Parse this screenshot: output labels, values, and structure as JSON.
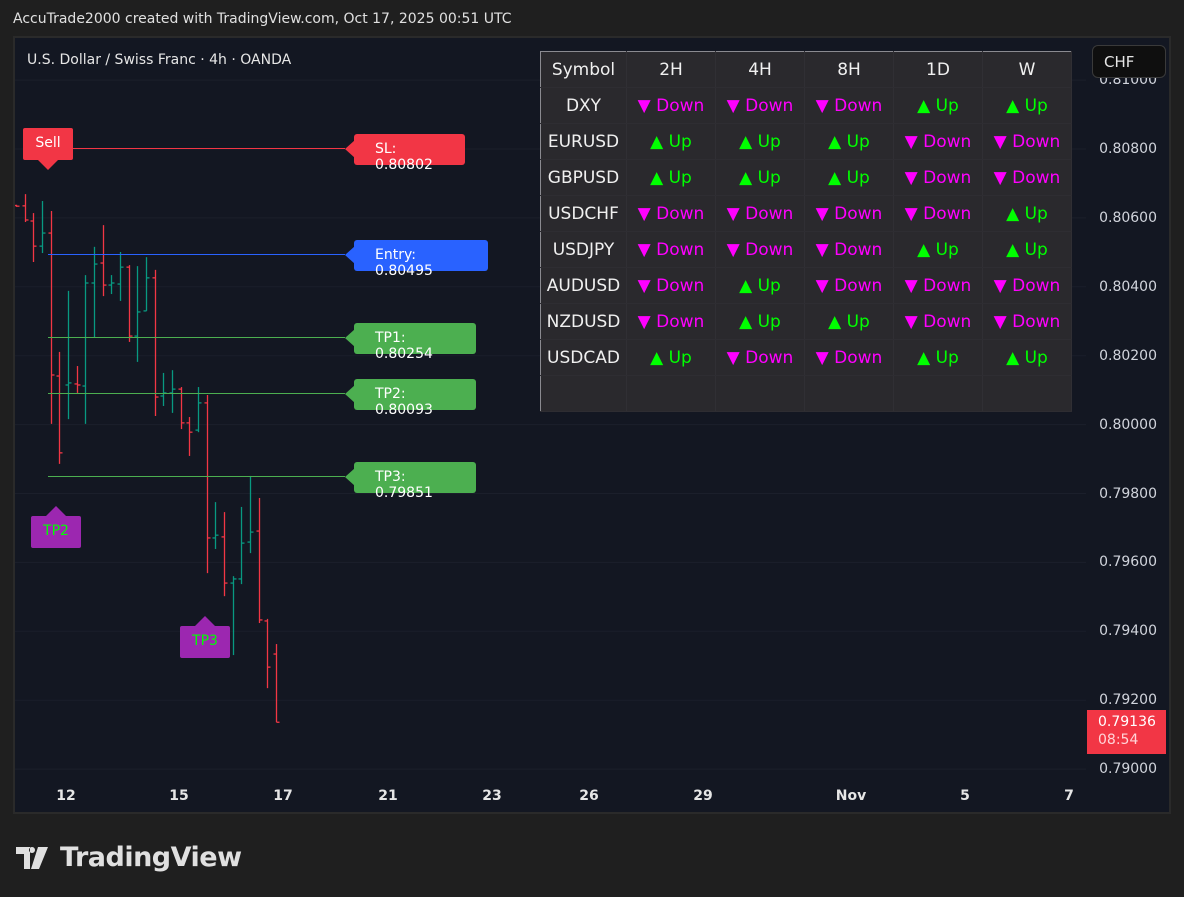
{
  "caption": "AccuTrade2000 created with TradingView.com, Oct 17, 2025 00:51 UTC",
  "symbol_title": "U.S. Dollar / Swiss Franc · 4h · OANDA",
  "currency_button": "CHF",
  "colors": {
    "up_bar": "#089981",
    "down_bar": "#f23645",
    "sl": "#f23645",
    "entry": "#2962ff",
    "tp": "#4caf50",
    "marker": "#9c27b0",
    "trend_up": "#00ff00",
    "trend_down": "#ff00ff"
  },
  "price_axis": {
    "labels": [
      "0.81000",
      "0.80800",
      "0.80600",
      "0.80400",
      "0.80200",
      "0.80000",
      "0.79800",
      "0.79600",
      "0.79400",
      "0.79200",
      "0.79000"
    ],
    "current_price": "0.79136",
    "countdown": "08:54"
  },
  "time_axis": [
    "12",
    "15",
    "17",
    "21",
    "23",
    "26",
    "29",
    "Nov",
    "5",
    "7"
  ],
  "levels": [
    {
      "label": "SL: 0.80802",
      "price": 0.80802,
      "kind": "sl"
    },
    {
      "label": "Entry: 0.80495",
      "price": 0.80495,
      "kind": "entry"
    },
    {
      "label": "TP1: 0.80254",
      "price": 0.80254,
      "kind": "tp"
    },
    {
      "label": "TP2: 0.80093",
      "price": 0.80093,
      "kind": "tp"
    },
    {
      "label": "TP3: 0.79851",
      "price": 0.79851,
      "kind": "tp"
    }
  ],
  "markers": [
    {
      "label": "Sell",
      "color": "#f23645",
      "dir": "down"
    },
    {
      "label": "TP2",
      "color": "#9c27b0",
      "dir": "up"
    },
    {
      "label": "TP3",
      "color": "#9c27b0",
      "dir": "up"
    }
  ],
  "ohlc": [
    [
      0.80636,
      0.80638,
      0.80632,
      0.80634
    ],
    [
      0.80635,
      0.80669,
      0.80588,
      0.80594
    ],
    [
      0.80591,
      0.80614,
      0.80472,
      0.80518
    ],
    [
      0.80518,
      0.80649,
      0.80498,
      0.80556
    ],
    [
      0.80556,
      0.8062,
      0.80002,
      0.80144
    ],
    [
      0.80141,
      0.80211,
      0.79886,
      0.79918
    ],
    [
      0.80115,
      0.80388,
      0.80016,
      0.80121
    ],
    [
      0.80118,
      0.8017,
      0.80092,
      0.80115
    ],
    [
      0.80112,
      0.80434,
      0.80002,
      0.80411
    ],
    [
      0.80411,
      0.80516,
      0.80254,
      0.80466
    ],
    [
      0.80469,
      0.80579,
      0.80373,
      0.80405
    ],
    [
      0.80405,
      0.80434,
      0.80379,
      0.80411
    ],
    [
      0.80408,
      0.80501,
      0.80359,
      0.80457
    ],
    [
      0.80457,
      0.80463,
      0.8024,
      0.80257
    ],
    [
      0.80257,
      0.8046,
      0.80182,
      0.80327
    ],
    [
      0.8033,
      0.80486,
      0.8033,
      0.80426
    ],
    [
      0.80426,
      0.80449,
      0.80025,
      0.8008
    ],
    [
      0.80083,
      0.8015,
      0.80054,
      0.80092
    ],
    [
      0.80092,
      0.80158,
      0.80034,
      0.80103
    ],
    [
      0.80103,
      0.80109,
      0.79987,
      0.80005
    ],
    [
      0.80005,
      0.80022,
      0.79909,
      0.79978
    ],
    [
      0.79984,
      0.80109,
      0.79978,
      0.80063
    ],
    [
      0.80063,
      0.80086,
      0.79569,
      0.79671
    ],
    [
      0.79671,
      0.79775,
      0.79639,
      0.79679
    ],
    [
      0.79674,
      0.79746,
      0.79502,
      0.7954
    ],
    [
      0.7954,
      0.7956,
      0.79331,
      0.79552
    ],
    [
      0.79552,
      0.79761,
      0.79537,
      0.79656
    ],
    [
      0.79659,
      0.79851,
      0.79627,
      0.79688
    ],
    [
      0.79691,
      0.79787,
      0.79424,
      0.79433
    ],
    [
      0.7943,
      0.79436,
      0.79235,
      0.79296
    ],
    [
      0.79334,
      0.79363,
      0.79136,
      0.79136
    ]
  ],
  "trend_table": {
    "headers": [
      "Symbol",
      "2H",
      "4H",
      "8H",
      "1D",
      "W"
    ],
    "rows": [
      {
        "symbol": "DXY",
        "cells": [
          "▼ Down",
          "▼ Down",
          "▼ Down",
          "▲ Up",
          "▲ Up"
        ]
      },
      {
        "symbol": "EURUSD",
        "cells": [
          "▲ Up",
          "▲ Up",
          "▲ Up",
          "▼ Down",
          "▼ Down"
        ]
      },
      {
        "symbol": "GBPUSD",
        "cells": [
          "▲ Up",
          "▲ Up",
          "▲ Up",
          "▼ Down",
          "▼ Down"
        ]
      },
      {
        "symbol": "USDCHF",
        "cells": [
          "▼ Down",
          "▼ Down",
          "▼ Down",
          "▼ Down",
          "▲ Up"
        ]
      },
      {
        "symbol": "USDJPY",
        "cells": [
          "▼ Down",
          "▼ Down",
          "▼ Down",
          "▲ Up",
          "▲ Up"
        ]
      },
      {
        "symbol": "AUDUSD",
        "cells": [
          "▼ Down",
          "▲ Up",
          "▼ Down",
          "▼ Down",
          "▼ Down"
        ]
      },
      {
        "symbol": "NZDUSD",
        "cells": [
          "▼ Down",
          "▲ Up",
          "▲ Up",
          "▼ Down",
          "▼ Down"
        ]
      },
      {
        "symbol": "USDCAD",
        "cells": [
          "▲ Up",
          "▼ Down",
          "▼ Down",
          "▲ Up",
          "▲ Up"
        ]
      }
    ]
  },
  "branding": "TradingView"
}
